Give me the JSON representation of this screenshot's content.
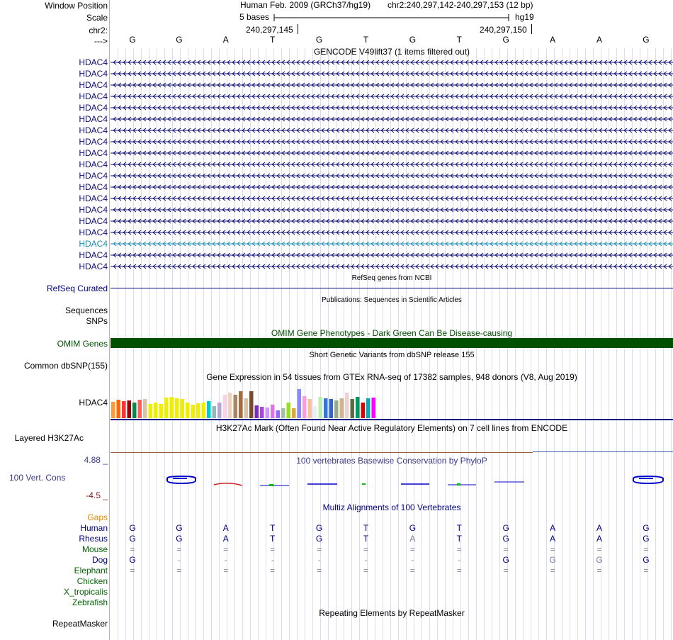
{
  "header": {
    "window_position_label": "Window Position",
    "scale_label": "Scale",
    "chr_label": "chr2:",
    "strand_label": "--->",
    "assembly_text": "Human Feb. 2009 (GRCh37/hg19)",
    "position_text": "chr2:240,297,142-240,297,153 (12 bp)",
    "scale_text": "5 bases",
    "db_text": "hg19",
    "coord_left": "240,297,145",
    "coord_right": "240,297,150"
  },
  "bases": [
    "G",
    "G",
    "A",
    "T",
    "G",
    "T",
    "G",
    "T",
    "G",
    "A",
    "A",
    "G"
  ],
  "gencode": {
    "title": "GENCODE V49lift37 (1 items filtered out)",
    "genes": [
      "HDAC4",
      "HDAC4",
      "HDAC4",
      "HDAC4",
      "HDAC4",
      "HDAC4",
      "HDAC4",
      "HDAC4",
      "HDAC4",
      "HDAC4",
      "HDAC4",
      "HDAC4",
      "HDAC4",
      "HDAC4",
      "HDAC4",
      "HDAC4",
      "HDAC4",
      "HDAC4",
      "HDAC4"
    ],
    "highlight_index": 16
  },
  "refseq": {
    "title": "RefSeq genes from NCBI",
    "label": "RefSeq Curated"
  },
  "publications": {
    "title": "Publications: Sequences in Scientific Articles",
    "label1": "Sequences",
    "label2": "SNPs"
  },
  "omim": {
    "title": "OMIM Gene Phenotypes - Dark Green Can Be Disease-causing",
    "label": "OMIM Genes",
    "color": "#005000"
  },
  "dbsnp": {
    "title": "Short Genetic Variants from dbSNP release 155",
    "label": "Common dbSNP(155)"
  },
  "gtex": {
    "title": "Gene Expression in 54 tissues from GTEx RNA-seq of 17382 samples, 948 donors (V8, Aug 2019)",
    "label": "HDAC4",
    "bars": [
      {
        "v": 0.65,
        "c": "#fe9a3a"
      },
      {
        "v": 0.72,
        "c": "#ff6600"
      },
      {
        "v": 0.68,
        "c": "#ff3333"
      },
      {
        "v": 0.7,
        "c": "#990000"
      },
      {
        "v": 0.62,
        "c": "#008b4b"
      },
      {
        "v": 0.72,
        "c": "#ff5e5e"
      },
      {
        "v": 0.75,
        "c": "#d8c3a5"
      },
      {
        "v": 0.55,
        "c": "#eeee00"
      },
      {
        "v": 0.6,
        "c": "#eeee00"
      },
      {
        "v": 0.55,
        "c": "#eeee00"
      },
      {
        "v": 0.8,
        "c": "#eeee00"
      },
      {
        "v": 0.82,
        "c": "#eeee00"
      },
      {
        "v": 0.78,
        "c": "#eeee00"
      },
      {
        "v": 0.76,
        "c": "#eeee00"
      },
      {
        "v": 0.62,
        "c": "#eeee00"
      },
      {
        "v": 0.52,
        "c": "#eeee00"
      },
      {
        "v": 0.58,
        "c": "#eeee00"
      },
      {
        "v": 0.62,
        "c": "#eeee00"
      },
      {
        "v": 0.68,
        "c": "#00cccc"
      },
      {
        "v": 0.48,
        "c": "#8fbcbb"
      },
      {
        "v": 0.6,
        "c": "#b4a7d6"
      },
      {
        "v": 0.92,
        "c": "#f5d4e6"
      },
      {
        "v": 1.0,
        "c": "#eed2bb"
      },
      {
        "v": 0.92,
        "c": "#aa8566"
      },
      {
        "v": 1.05,
        "c": "#a86b3d"
      },
      {
        "v": 0.78,
        "c": "#d8c3a5"
      },
      {
        "v": 1.05,
        "c": "#7a4b2a"
      },
      {
        "v": 0.5,
        "c": "#7b2cbf"
      },
      {
        "v": 0.45,
        "c": "#aa44dd"
      },
      {
        "v": 0.42,
        "c": "#cc99ff"
      },
      {
        "v": 0.52,
        "c": "#dd77dd"
      },
      {
        "v": 0.3,
        "c": "#9966ff"
      },
      {
        "v": 0.38,
        "c": "#aabbaa"
      },
      {
        "v": 0.62,
        "c": "#99dd22"
      },
      {
        "v": 0.4,
        "c": "#ddaa33"
      },
      {
        "v": 1.15,
        "c": "#8888ff"
      },
      {
        "v": 0.85,
        "c": "#ff99dd"
      },
      {
        "v": 0.75,
        "c": "#f4c2a0"
      },
      {
        "v": 0.48,
        "c": "#eeeeee"
      },
      {
        "v": 0.82,
        "c": "#bbeeaa"
      },
      {
        "v": 0.78,
        "c": "#3377dd"
      },
      {
        "v": 0.76,
        "c": "#3366cc"
      },
      {
        "v": 0.7,
        "c": "#99aa88"
      },
      {
        "v": 0.78,
        "c": "#d2b48c"
      },
      {
        "v": 1.0,
        "c": "#eed2d0"
      },
      {
        "v": 0.75,
        "c": "#5a6b46"
      },
      {
        "v": 0.82,
        "c": "#009966"
      },
      {
        "v": 0.6,
        "c": "#dd0000"
      },
      {
        "v": 0.78,
        "c": "#00aabb"
      },
      {
        "v": 0.8,
        "c": "#ff00ff"
      }
    ]
  },
  "h3k27ac": {
    "title": "H3K27Ac Mark (Often Found Near Active Regulatory Elements) on 7 cell lines from ENCODE",
    "label": "Layered H3K27Ac"
  },
  "phylop": {
    "title": "100 vertebrates Basewise Conservation by PhyloP",
    "label": "100 Vert. Cons",
    "max": "4.88 _",
    "min": "-4.5 _"
  },
  "multiz": {
    "title": "Multiz Alignments of 100 Vertebrates",
    "gaps_label": "Gaps",
    "species": [
      {
        "name": "Human",
        "color": "#000080",
        "bases": [
          "G",
          "G",
          "A",
          "T",
          "G",
          "T",
          "G",
          "T",
          "G",
          "A",
          "A",
          "G"
        ]
      },
      {
        "name": "Rhesus",
        "color": "#000080",
        "bases": [
          "G",
          "G",
          "A",
          "T",
          "G",
          "T",
          "A",
          "T",
          "G",
          "A",
          "A",
          "G"
        ]
      },
      {
        "name": "Mouse",
        "color": "#006400",
        "bases": [
          "=",
          "=",
          "=",
          "=",
          "=",
          "=",
          "=",
          "=",
          "=",
          "=",
          "=",
          "="
        ]
      },
      {
        "name": "Dog",
        "color": "#000080",
        "bases": [
          "G",
          "-",
          "-",
          "-",
          "-",
          "-",
          "-",
          "-",
          "G",
          "G",
          "G",
          "G"
        ]
      },
      {
        "name": "Elephant",
        "color": "#006400",
        "bases": [
          "=",
          "=",
          "=",
          "=",
          "=",
          "=",
          "=",
          "=",
          "=",
          "=",
          "=",
          "="
        ]
      },
      {
        "name": "Chicken",
        "color": "#006400",
        "bases": []
      },
      {
        "name": "X_tropicalis",
        "color": "#006400",
        "bases": []
      },
      {
        "name": "Zebrafish",
        "color": "#006400",
        "bases": []
      }
    ]
  },
  "repeatmasker": {
    "title": "Repeating Elements by RepeatMasker",
    "label": "RepeatMasker"
  }
}
